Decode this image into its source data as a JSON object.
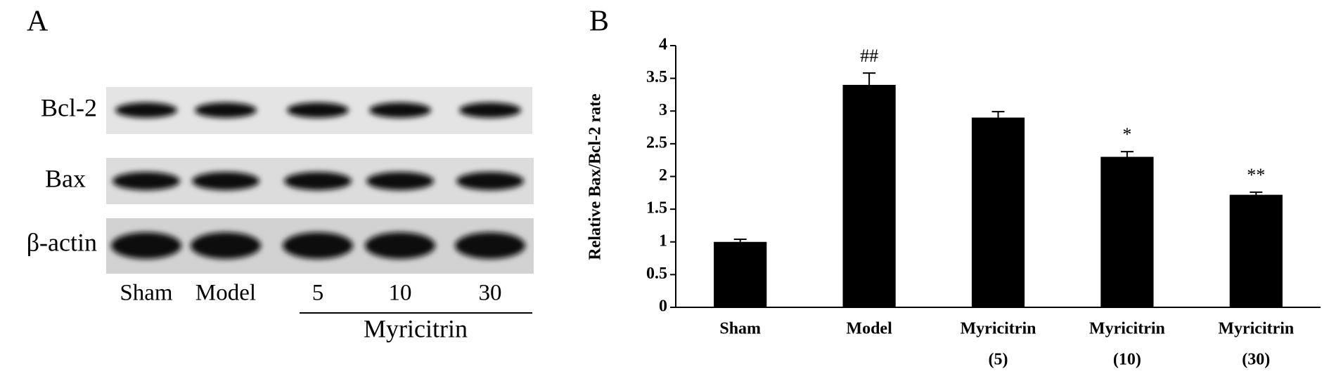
{
  "panel_labels": [
    "A",
    "B"
  ],
  "blot": {
    "rows": [
      "Bcl-2",
      "Bax",
      "β-actin"
    ],
    "lanes": [
      "Sham",
      "Model",
      "5",
      "10",
      "30"
    ],
    "group_label": "Myricitrin"
  },
  "chart_data": {
    "type": "bar",
    "y_label": "Relative Bax/Bcl-2 rate",
    "categories": [
      [
        "Sham"
      ],
      [
        "Model"
      ],
      [
        "Myricitrin",
        "(5)"
      ],
      [
        "Myricitrin",
        "(10)"
      ],
      [
        "Myricitrin",
        "(30)"
      ]
    ],
    "values": [
      1.0,
      3.4,
      2.9,
      2.3,
      1.72
    ],
    "errors": [
      0.04,
      0.18,
      0.09,
      0.08,
      0.04
    ],
    "annotations": [
      null,
      "##",
      null,
      "*",
      "**"
    ],
    "color": "#000000",
    "ylim": [
      0,
      4
    ],
    "yticks": [
      0,
      0.5,
      1,
      1.5,
      2,
      2.5,
      3,
      3.5,
      4
    ]
  }
}
